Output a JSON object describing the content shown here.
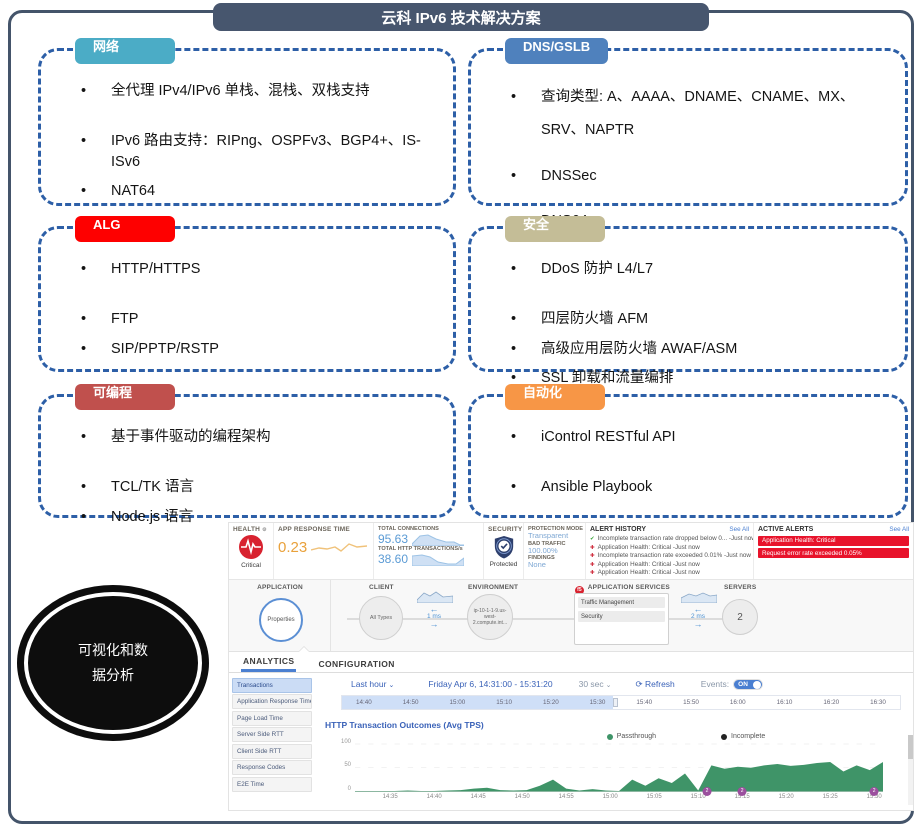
{
  "slide": {
    "title": "云科 IPv6 技术解决方案"
  },
  "boxes": [
    {
      "label": "网络",
      "color": "#4BACC6",
      "bullets": [
        "全代理 IPv4/IPv6 单栈、混栈、双栈支持",
        "IPv6 路由支持：RIPng、OSPFv3、BGP4+、IS-ISv6",
        "NAT64"
      ]
    },
    {
      "label": "DNS/GSLB",
      "color": "#4F81BD",
      "bullets": [
        "查询类型: A、AAAA、DNAME、CNAME、MX、SRV、NAPTR",
        "DNSSec",
        "DNS64"
      ]
    },
    {
      "label": "ALG",
      "color": "#FE0000",
      "bullets": [
        "HTTP/HTTPS",
        "FTP",
        "SIP/PPTP/RSTP"
      ]
    },
    {
      "label": "安全",
      "color": "#C4BD97",
      "bullets": [
        "DDoS 防护 L4/L7",
        "四层防火墙 AFM",
        "高级应用层防火墙 AWAF/ASM",
        "SSL 卸载和流量编排"
      ]
    },
    {
      "label": "可编程",
      "color": "#C0504D",
      "bullets": [
        "基于事件驱动的编程架构",
        "TCL/TK 语言",
        "Node.js 语言"
      ]
    },
    {
      "label": "自动化",
      "color": "#F79646",
      "bullets": [
        "iControl RESTful API",
        "Ansible Playbook"
      ]
    }
  ],
  "ellipse": {
    "line1": "可视化和数",
    "line2": "据分析"
  },
  "dashboard": {
    "kpi": {
      "health_label": "HEALTH",
      "health_status": "Critical",
      "art_label": "APP RESPONSE TIME",
      "art_value": "0.23",
      "connections_label": "TOTAL CONNECTIONS",
      "connections_value": "95.63",
      "http_label": "TOTAL HTTP TRANSACTIONS/s",
      "http_value": "38.60",
      "security_label": "SECURITY",
      "security_status": "Protected",
      "protection_mode_label": "PROTECTION MODE",
      "protection_mode": "Transparent",
      "bad_traffic_label": "BAD TRAFFIC",
      "bad_traffic": "100.00%",
      "findings_label": "FINDINGS",
      "findings": "None"
    },
    "alert_history": {
      "title": "ALERT HISTORY",
      "see_all": "See All",
      "items": [
        {
          "icon": "check",
          "text": "Incomplete transaction rate dropped below 0... -Just now"
        },
        {
          "icon": "critical",
          "text": "Application Health: Critical -Just now"
        },
        {
          "icon": "critical",
          "text": "Incomplete transaction rate exceeded 0.01% -Just now"
        },
        {
          "icon": "critical",
          "text": "Application Health: Critical -Just now"
        },
        {
          "icon": "critical",
          "text": "Application Health: Critical -Just now"
        }
      ]
    },
    "active_alerts": {
      "title": "ACTIVE ALERTS",
      "see_all": "See All",
      "items": [
        "Application Health: Critical",
        "Request error rate exceeded 0.05%"
      ]
    },
    "topology": {
      "application_label": "APPLICATION",
      "properties_label": "Properties",
      "client_label": "CLIENT",
      "client_value": "All Types",
      "client_latency": "1 ms",
      "environment_label": "ENVIRONMENT",
      "environment_value": "ip-10-1-1-9.us-west-2.compute.int...",
      "services_label": "APPLICATION SERVICES",
      "services": [
        "Traffic Management",
        "Security"
      ],
      "server_latency": "2 ms",
      "servers_label": "SERVERS",
      "servers_value": "2"
    },
    "tabs": [
      {
        "label": "ANALYTICS",
        "active": true
      },
      {
        "label": "CONFIGURATION",
        "active": false
      }
    ],
    "sidebar": [
      "Transactions",
      "Application Response Time",
      "Page Load Time",
      "Server Side RTT",
      "Client Side RTT",
      "Response Codes",
      "E2E Time"
    ],
    "timebar": {
      "range": "Last hour",
      "date_range": "Friday Apr 6, 14:31:00 - 15:31:20",
      "interval": "30 sec",
      "refresh": "Refresh",
      "events_label": "Events:",
      "events_state": "ON"
    },
    "timeline_ticks": [
      "14:40",
      "14:50",
      "15:00",
      "15:10",
      "15:20",
      "15:30",
      "15:40",
      "15:50",
      "16:00",
      "16:10",
      "16:20",
      "16:30"
    ]
  },
  "chart_data": {
    "type": "area",
    "title": "HTTP Transaction Outcomes (Avg TPS)",
    "x_range": [
      "14:31",
      "15:31"
    ],
    "x_ticks": [
      "14:35",
      "14:40",
      "14:45",
      "14:50",
      "14:55",
      "15:00",
      "15:05",
      "15:10",
      "15:15",
      "15:20",
      "15:25",
      "15:30"
    ],
    "ylim": [
      0,
      100
    ],
    "y_ticks": [
      0,
      50,
      100
    ],
    "legend_position": "top",
    "series": [
      {
        "name": "Passthrough",
        "color": "#3f9468",
        "values": [
          1,
          1,
          1,
          1,
          2,
          1,
          1,
          2,
          3,
          6,
          8,
          3,
          2,
          3,
          12,
          25,
          6,
          2,
          5,
          2,
          1,
          25,
          12,
          28,
          18,
          38,
          2,
          55,
          48,
          52,
          50,
          55,
          58,
          54,
          56,
          60,
          62,
          42,
          55,
          45,
          62
        ]
      },
      {
        "name": "Incomplete",
        "color": "#222222",
        "values": [
          0,
          0,
          0,
          0,
          0,
          0,
          0,
          0,
          0,
          0,
          0,
          0,
          0,
          0,
          0,
          0,
          0,
          0,
          0,
          0,
          0,
          0,
          0,
          0,
          0,
          0,
          0,
          0,
          0,
          0,
          0,
          0,
          0,
          0,
          0,
          0,
          0,
          0,
          0,
          0,
          0
        ]
      }
    ],
    "events": [
      {
        "time": "15:11",
        "label": "2"
      },
      {
        "time": "15:15",
        "label": "2"
      },
      {
        "time": "15:30",
        "label": "2"
      }
    ]
  }
}
